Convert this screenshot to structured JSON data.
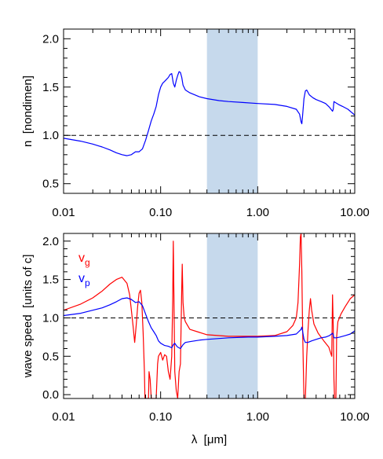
{
  "chart_data": [
    {
      "type": "line",
      "xscale": "log",
      "xlim": [
        0.01,
        10.0
      ],
      "ylim": [
        0.4,
        2.1
      ],
      "ylabel": "n  [nondimen]",
      "xlabel": "",
      "x_ticks": [
        "0.01",
        "0.10",
        "1.00",
        "10.00"
      ],
      "y_ticks": [
        {
          "value": 0.5,
          "label": "0.5"
        },
        {
          "value": 1.0,
          "label": "1.0"
        },
        {
          "value": 1.5,
          "label": "1.5"
        },
        {
          "value": 2.0,
          "label": "2.0"
        }
      ],
      "shaded_band": {
        "x0": 0.3,
        "x1": 1.0,
        "color": "#c6d9ec"
      },
      "reference_line": {
        "y": 1.0,
        "style": "dashed",
        "color": "#000000"
      },
      "series": [
        {
          "color": "#0000ff",
          "points": [
            [
              0.01,
              0.97
            ],
            [
              0.015,
              0.94
            ],
            [
              0.02,
              0.91
            ],
            [
              0.025,
              0.88
            ],
            [
              0.03,
              0.85
            ],
            [
              0.035,
              0.82
            ],
            [
              0.04,
              0.8
            ],
            [
              0.045,
              0.79
            ],
            [
              0.05,
              0.8
            ],
            [
              0.055,
              0.83
            ],
            [
              0.06,
              0.83
            ],
            [
              0.065,
              0.86
            ],
            [
              0.07,
              0.95
            ],
            [
              0.075,
              1.05
            ],
            [
              0.08,
              1.15
            ],
            [
              0.085,
              1.22
            ],
            [
              0.09,
              1.3
            ],
            [
              0.095,
              1.42
            ],
            [
              0.1,
              1.5
            ],
            [
              0.105,
              1.54
            ],
            [
              0.11,
              1.56
            ],
            [
              0.115,
              1.58
            ],
            [
              0.12,
              1.6
            ],
            [
              0.125,
              1.63
            ],
            [
              0.13,
              1.64
            ],
            [
              0.135,
              1.54
            ],
            [
              0.14,
              1.5
            ],
            [
              0.145,
              1.57
            ],
            [
              0.15,
              1.62
            ],
            [
              0.155,
              1.66
            ],
            [
              0.16,
              1.65
            ],
            [
              0.165,
              1.6
            ],
            [
              0.17,
              1.52
            ],
            [
              0.18,
              1.47
            ],
            [
              0.2,
              1.44
            ],
            [
              0.25,
              1.4
            ],
            [
              0.3,
              1.38
            ],
            [
              0.4,
              1.36
            ],
            [
              0.5,
              1.35
            ],
            [
              0.7,
              1.34
            ],
            [
              1.0,
              1.33
            ],
            [
              1.5,
              1.32
            ],
            [
              2.0,
              1.3
            ],
            [
              2.5,
              1.27
            ],
            [
              2.7,
              1.22
            ],
            [
              2.8,
              1.14
            ],
            [
              2.85,
              1.12
            ],
            [
              2.9,
              1.2
            ],
            [
              3.0,
              1.38
            ],
            [
              3.1,
              1.46
            ],
            [
              3.2,
              1.47
            ],
            [
              3.4,
              1.42
            ],
            [
              3.7,
              1.39
            ],
            [
              4.0,
              1.37
            ],
            [
              4.5,
              1.35
            ],
            [
              5.0,
              1.33
            ],
            [
              5.5,
              1.29
            ],
            [
              5.9,
              1.25
            ],
            [
              6.0,
              1.27
            ],
            [
              6.1,
              1.35
            ],
            [
              6.3,
              1.34
            ],
            [
              6.8,
              1.32
            ],
            [
              7.5,
              1.3
            ],
            [
              8.5,
              1.27
            ],
            [
              10.0,
              1.21
            ]
          ]
        }
      ]
    },
    {
      "type": "line",
      "xscale": "log",
      "xlim": [
        0.01,
        10.0
      ],
      "ylim": [
        -0.05,
        2.1
      ],
      "ylabel": "wave speed  [units of c]",
      "xlabel": "λ  [μm]",
      "x_ticks": [
        "0.01",
        "0.10",
        "1.00",
        "10.00"
      ],
      "y_ticks": [
        {
          "value": 0.0,
          "label": "0.0"
        },
        {
          "value": 0.5,
          "label": "0.5"
        },
        {
          "value": 1.0,
          "label": "1.0"
        },
        {
          "value": 1.5,
          "label": "1.5"
        },
        {
          "value": 2.0,
          "label": "2.0"
        }
      ],
      "shaded_band": {
        "x0": 0.3,
        "x1": 1.0,
        "color": "#c6d9ec"
      },
      "reference_line": {
        "y": 1.0,
        "style": "dashed",
        "color": "#000000"
      },
      "legend": {
        "placement": "top-left",
        "entries": [
          {
            "symbol": "v",
            "subscript": "g",
            "color": "#ff0000"
          },
          {
            "symbol": "v",
            "subscript": "p",
            "color": "#0000ff"
          }
        ]
      },
      "series": [
        {
          "symbol": "v_g",
          "color": "#ff0000",
          "points": [
            [
              0.01,
              1.1
            ],
            [
              0.015,
              1.18
            ],
            [
              0.02,
              1.26
            ],
            [
              0.025,
              1.35
            ],
            [
              0.03,
              1.44
            ],
            [
              0.035,
              1.5
            ],
            [
              0.04,
              1.53
            ],
            [
              0.045,
              1.45
            ],
            [
              0.048,
              1.3
            ],
            [
              0.05,
              1.1
            ],
            [
              0.052,
              0.9
            ],
            [
              0.054,
              0.68
            ],
            [
              0.056,
              0.9
            ],
            [
              0.058,
              1.15
            ],
            [
              0.06,
              1.32
            ],
            [
              0.062,
              1.36
            ],
            [
              0.064,
              1.2
            ],
            [
              0.066,
              0.8
            ],
            [
              0.068,
              0.3
            ],
            [
              0.069,
              -0.05
            ],
            [
              0.075,
              -0.05
            ],
            [
              0.076,
              0.3
            ],
            [
              0.078,
              0.2
            ],
            [
              0.08,
              -0.05
            ],
            [
              0.09,
              -0.05
            ],
            [
              0.093,
              0.4
            ],
            [
              0.095,
              0.5
            ],
            [
              0.1,
              0.55
            ],
            [
              0.105,
              0.45
            ],
            [
              0.11,
              0.52
            ],
            [
              0.115,
              0.5
            ],
            [
              0.12,
              0.3
            ],
            [
              0.125,
              0.2
            ],
            [
              0.13,
              0.5
            ],
            [
              0.133,
              1.2
            ],
            [
              0.135,
              2.0
            ],
            [
              0.137,
              1.3
            ],
            [
              0.14,
              0.3
            ],
            [
              0.145,
              0.05
            ],
            [
              0.15,
              -0.05
            ],
            [
              0.155,
              0.3
            ],
            [
              0.16,
              0.4
            ],
            [
              0.165,
              1.4
            ],
            [
              0.167,
              1.7
            ],
            [
              0.17,
              1.2
            ],
            [
              0.175,
              1.0
            ],
            [
              0.18,
              0.95
            ],
            [
              0.2,
              0.85
            ],
            [
              0.3,
              0.78
            ],
            [
              0.5,
              0.76
            ],
            [
              0.8,
              0.76
            ],
            [
              1.0,
              0.76
            ],
            [
              1.5,
              0.77
            ],
            [
              2.0,
              0.82
            ],
            [
              2.3,
              0.9
            ],
            [
              2.5,
              1.0
            ],
            [
              2.6,
              1.2
            ],
            [
              2.7,
              1.7
            ],
            [
              2.75,
              2.05
            ],
            [
              2.8,
              2.1
            ],
            [
              2.85,
              1.6
            ],
            [
              2.9,
              0.9
            ],
            [
              2.95,
              0.4
            ],
            [
              3.0,
              -0.05
            ],
            [
              3.1,
              -0.05
            ],
            [
              3.2,
              0.5
            ],
            [
              3.3,
              0.85
            ],
            [
              3.4,
              1.1
            ],
            [
              3.5,
              1.25
            ],
            [
              3.6,
              1.1
            ],
            [
              3.8,
              0.92
            ],
            [
              4.2,
              0.8
            ],
            [
              4.8,
              0.7
            ],
            [
              5.4,
              0.62
            ],
            [
              5.8,
              0.5
            ],
            [
              5.9,
              1.3
            ],
            [
              6.0,
              0.9
            ],
            [
              6.1,
              0.2
            ],
            [
              6.2,
              -0.05
            ],
            [
              6.4,
              -0.05
            ],
            [
              6.5,
              0.75
            ],
            [
              6.7,
              0.95
            ],
            [
              7.2,
              1.05
            ],
            [
              8.0,
              1.15
            ],
            [
              9.0,
              1.25
            ],
            [
              10.0,
              1.3
            ]
          ]
        },
        {
          "symbol": "v_p",
          "color": "#0000ff",
          "points": [
            [
              0.01,
              1.03
            ],
            [
              0.015,
              1.06
            ],
            [
              0.02,
              1.1
            ],
            [
              0.025,
              1.13
            ],
            [
              0.03,
              1.17
            ],
            [
              0.035,
              1.21
            ],
            [
              0.04,
              1.25
            ],
            [
              0.045,
              1.26
            ],
            [
              0.05,
              1.24
            ],
            [
              0.055,
              1.2
            ],
            [
              0.06,
              1.21
            ],
            [
              0.065,
              1.16
            ],
            [
              0.07,
              1.05
            ],
            [
              0.075,
              0.95
            ],
            [
              0.08,
              0.87
            ],
            [
              0.085,
              0.82
            ],
            [
              0.09,
              0.77
            ],
            [
              0.095,
              0.7
            ],
            [
              0.1,
              0.67
            ],
            [
              0.11,
              0.64
            ],
            [
              0.12,
              0.63
            ],
            [
              0.13,
              0.61
            ],
            [
              0.135,
              0.65
            ],
            [
              0.14,
              0.67
            ],
            [
              0.145,
              0.64
            ],
            [
              0.15,
              0.62
            ],
            [
              0.16,
              0.6
            ],
            [
              0.17,
              0.65
            ],
            [
              0.18,
              0.68
            ],
            [
              0.2,
              0.69
            ],
            [
              0.25,
              0.71
            ],
            [
              0.3,
              0.72
            ],
            [
              0.5,
              0.74
            ],
            [
              0.8,
              0.75
            ],
            [
              1.0,
              0.75
            ],
            [
              1.5,
              0.76
            ],
            [
              2.0,
              0.77
            ],
            [
              2.5,
              0.79
            ],
            [
              2.8,
              0.85
            ],
            [
              2.85,
              0.88
            ],
            [
              2.9,
              0.83
            ],
            [
              3.0,
              0.72
            ],
            [
              3.1,
              0.68
            ],
            [
              3.3,
              0.68
            ],
            [
              3.6,
              0.7
            ],
            [
              4.0,
              0.72
            ],
            [
              4.5,
              0.74
            ],
            [
              5.0,
              0.75
            ],
            [
              5.5,
              0.77
            ],
            [
              5.9,
              0.8
            ],
            [
              6.0,
              0.78
            ],
            [
              6.1,
              0.74
            ],
            [
              6.5,
              0.74
            ],
            [
              7.0,
              0.75
            ],
            [
              8.0,
              0.77
            ],
            [
              9.0,
              0.79
            ],
            [
              10.0,
              0.83
            ]
          ]
        }
      ]
    }
  ]
}
